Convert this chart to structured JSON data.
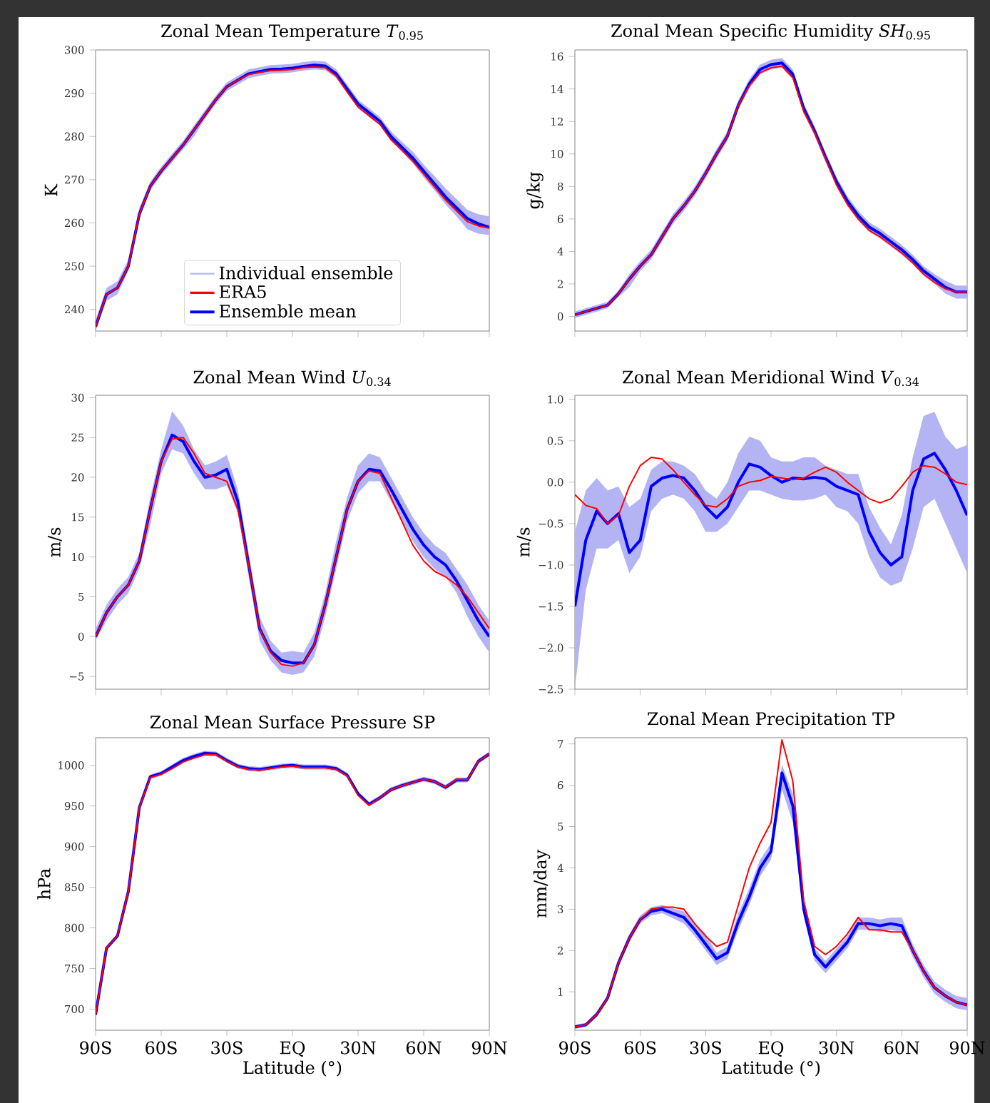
{
  "chart_data": [
    {
      "type": "line",
      "title": "Zonal Mean Temperature *T*$_{0.95}$",
      "ylabel": "K",
      "legend": "bottom",
      "tick_labels": "y",
      "x": [
        -90,
        -85,
        -80,
        -75,
        -70,
        -65,
        -60,
        -55,
        -50,
        -45,
        -40,
        -35,
        -30,
        -25,
        -20,
        -15,
        -10,
        -5,
        0,
        5,
        10,
        15,
        20,
        25,
        30,
        35,
        40,
        45,
        50,
        55,
        60,
        65,
        70,
        75,
        80,
        85,
        90
      ],
      "xlim": [
        -90,
        90
      ],
      "xticks": [
        {
          "value": -90,
          "label": null
        },
        {
          "value": -60,
          "label": null
        },
        {
          "value": -30,
          "label": null
        },
        {
          "value": 0,
          "label": null
        },
        {
          "value": 30,
          "label": null
        },
        {
          "value": 60,
          "label": null
        },
        {
          "value": 90,
          "label": null
        }
      ],
      "ylim": [
        235,
        300
      ],
      "yticks": [
        240,
        250,
        260,
        270,
        280,
        290,
        300
      ],
      "series": [
        {
          "name": "Individual ensemble",
          "color": "#b4b4f5",
          "values": [
            null,
            null,
            null,
            null,
            null,
            null,
            null,
            null,
            null,
            null,
            null,
            null,
            null,
            null,
            null,
            null,
            null,
            null,
            null,
            null,
            null,
            null,
            null,
            null,
            null,
            null,
            null,
            null,
            null,
            null,
            null,
            null,
            null,
            null,
            null,
            null,
            null
          ],
          "lower": [
            235,
            242,
            243.5,
            249,
            261,
            267.5,
            271,
            274,
            277,
            280,
            284,
            287.5,
            290.5,
            292,
            293.5,
            294,
            294.5,
            294.6,
            294.8,
            295.2,
            295.5,
            295.3,
            293.5,
            290,
            286.5,
            284.5,
            282.5,
            279,
            276.5,
            273.8,
            270.5,
            267.5,
            264.3,
            261.5,
            258.5,
            257.5,
            257.2
          ],
          "upper": [
            237.5,
            245,
            246.5,
            251.5,
            263.5,
            269.5,
            273,
            276,
            279,
            282.5,
            286,
            289.5,
            292.5,
            294,
            295.5,
            296,
            296.5,
            296.6,
            296.8,
            297.2,
            297.5,
            297.3,
            295.5,
            292,
            288.5,
            286.5,
            284.5,
            281.2,
            278.8,
            276.5,
            273.5,
            270.8,
            268,
            265.5,
            263,
            262,
            261.5
          ]
        },
        {
          "name": "ERA5",
          "color": "#ff0000",
          "values": [
            236,
            243.5,
            245,
            250,
            262,
            268.5,
            272,
            275,
            278,
            281.5,
            285,
            288.5,
            291.5,
            293,
            294.3,
            294.8,
            295.2,
            295.3,
            295.5,
            295.9,
            296.1,
            295.9,
            294,
            290.3,
            286.8,
            284.8,
            282.8,
            279.3,
            276.8,
            274.3,
            271.3,
            268.3,
            265.3,
            262.8,
            260.3,
            259.3,
            258.8
          ]
        },
        {
          "name": "Ensemble mean",
          "color": "#0000ff",
          "values": [
            236,
            243.5,
            245,
            250,
            262,
            268.5,
            272,
            275,
            278,
            281.5,
            285,
            288.5,
            291.5,
            293,
            294.5,
            295,
            295.5,
            295.6,
            295.8,
            296.2,
            296.5,
            296.3,
            294.5,
            291,
            287.5,
            285.5,
            283.5,
            280,
            277.5,
            275,
            272,
            269,
            266,
            263.5,
            261,
            259.8,
            259
          ]
        }
      ]
    },
    {
      "type": "line",
      "title": "Zonal Mean Specific Humidity *SH*$_{0.95}$",
      "ylabel": "g/kg",
      "tick_labels": "y",
      "x": [
        -90,
        -85,
        -80,
        -75,
        -70,
        -65,
        -60,
        -55,
        -50,
        -45,
        -40,
        -35,
        -30,
        -25,
        -20,
        -15,
        -10,
        -5,
        0,
        5,
        10,
        15,
        20,
        25,
        30,
        35,
        40,
        45,
        50,
        55,
        60,
        65,
        70,
        75,
        80,
        85,
        90
      ],
      "xlim": [
        -90,
        90
      ],
      "xticks": [
        {
          "value": -90,
          "label": null
        },
        {
          "value": -60,
          "label": null
        },
        {
          "value": -30,
          "label": null
        },
        {
          "value": 0,
          "label": null
        },
        {
          "value": 30,
          "label": null
        },
        {
          "value": 60,
          "label": null
        },
        {
          "value": 90,
          "label": null
        }
      ],
      "ylim": [
        -0.9,
        16.4
      ],
      "yticks": [
        0,
        2,
        4,
        6,
        8,
        10,
        12,
        14,
        16
      ],
      "series": [
        {
          "color": "#b4b4f5",
          "values": [
            null,
            null,
            null,
            null,
            null,
            null,
            null,
            null,
            null,
            null,
            null,
            null,
            null,
            null,
            null,
            null,
            null,
            null,
            null,
            null,
            null,
            null,
            null,
            null,
            null,
            null,
            null,
            null,
            null,
            null,
            null,
            null,
            null,
            null,
            null,
            null,
            null
          ],
          "lower": [
            -0.1,
            0.1,
            0.3,
            0.5,
            1.2,
            1.8,
            2.8,
            3.5,
            4.6,
            5.7,
            6.5,
            7.4,
            8.5,
            9.7,
            10.8,
            12.7,
            14.0,
            14.9,
            15.2,
            15.3,
            14.6,
            12.5,
            11.1,
            9.5,
            8.0,
            6.8,
            5.9,
            5.2,
            4.8,
            4.3,
            3.8,
            3.2,
            2.5,
            2.0,
            1.4,
            1.1,
            1.1
          ],
          "upper": [
            0.3,
            0.5,
            0.7,
            0.9,
            1.6,
            2.6,
            3.4,
            4.1,
            5.2,
            6.3,
            7.1,
            8.0,
            9.1,
            10.3,
            11.4,
            13.3,
            14.6,
            15.5,
            15.8,
            15.9,
            15.2,
            13.1,
            11.7,
            10.1,
            8.6,
            7.4,
            6.5,
            5.8,
            5.4,
            4.9,
            4.4,
            3.8,
            3.1,
            2.6,
            2.2,
            1.9,
            1.9
          ]
        },
        {
          "color": "#ff0000",
          "values": [
            0.1,
            0.3,
            0.5,
            0.7,
            1.4,
            2.3,
            3.1,
            3.8,
            4.9,
            6.0,
            6.8,
            7.7,
            8.8,
            10.0,
            11.1,
            13.0,
            14.2,
            15.0,
            15.3,
            15.4,
            14.7,
            12.6,
            11.3,
            9.7,
            8.1,
            6.9,
            6.0,
            5.3,
            4.9,
            4.4,
            3.9,
            3.3,
            2.6,
            2.1,
            1.7,
            1.5,
            1.5
          ]
        },
        {
          "color": "#0000ff",
          "values": [
            0.1,
            0.3,
            0.5,
            0.7,
            1.4,
            2.3,
            3.1,
            3.8,
            4.9,
            6.0,
            6.8,
            7.7,
            8.8,
            10.0,
            11.1,
            13.0,
            14.3,
            15.2,
            15.5,
            15.6,
            14.9,
            12.8,
            11.4,
            9.8,
            8.3,
            7.1,
            6.2,
            5.5,
            5.1,
            4.6,
            4.1,
            3.5,
            2.8,
            2.3,
            1.8,
            1.5,
            1.5
          ]
        }
      ]
    },
    {
      "type": "line",
      "title": "Zonal Mean Wind *U*$_{0.34}$",
      "ylabel": "m/s",
      "tick_labels": "y",
      "x": [
        -90,
        -85,
        -80,
        -75,
        -70,
        -65,
        -60,
        -55,
        -50,
        -45,
        -40,
        -35,
        -30,
        -25,
        -20,
        -15,
        -10,
        -5,
        0,
        5,
        10,
        15,
        20,
        25,
        30,
        35,
        40,
        45,
        50,
        55,
        60,
        65,
        70,
        75,
        80,
        85,
        90
      ],
      "xlim": [
        -90,
        90
      ],
      "xticks": [
        {
          "value": -90,
          "label": null
        },
        {
          "value": -60,
          "label": null
        },
        {
          "value": -30,
          "label": null
        },
        {
          "value": 0,
          "label": null
        },
        {
          "value": 30,
          "label": null
        },
        {
          "value": 60,
          "label": null
        },
        {
          "value": 90,
          "label": null
        }
      ],
      "ylim": [
        -6.6,
        30.3
      ],
      "yticks": [
        {
          "value": -5,
          "label": "−5"
        },
        0,
        5,
        10,
        15,
        20,
        25,
        30
      ],
      "series": [
        {
          "color": "#b4b4f5",
          "values": [
            null,
            null,
            null,
            null,
            null,
            null,
            null,
            null,
            null,
            null,
            null,
            null,
            null,
            null,
            null,
            null,
            null,
            null,
            null,
            null,
            null,
            null,
            null,
            null,
            null,
            null,
            null,
            null,
            null,
            null,
            null,
            null,
            null,
            null,
            null,
            null,
            null
          ],
          "lower": [
            -0.5,
            2,
            4,
            5.5,
            8.5,
            14,
            20.5,
            23.5,
            23,
            20.5,
            18.5,
            18.5,
            19,
            15.5,
            7.5,
            -0.5,
            -3,
            -4.5,
            -4.8,
            -4.5,
            -2.5,
            2.5,
            8.5,
            14.5,
            18,
            19.5,
            19.5,
            17,
            14.5,
            12,
            10,
            8.5,
            7.5,
            5.5,
            2.5,
            0,
            -2
          ],
          "upper": [
            1,
            4,
            6,
            7.5,
            10.5,
            17.5,
            23.5,
            28.3,
            26.5,
            23.5,
            21.5,
            22,
            22.8,
            18.5,
            10.5,
            2.5,
            -0.5,
            -2,
            -1.8,
            -2,
            0.5,
            5.5,
            12,
            17.5,
            21.5,
            23,
            22.5,
            20,
            17.5,
            15,
            13,
            11.5,
            10.5,
            8.5,
            6.5,
            4,
            2
          ]
        },
        {
          "color": "#ff0000",
          "values": [
            0,
            3,
            5,
            6.5,
            9.5,
            16,
            22,
            24.8,
            25,
            23,
            20.5,
            20,
            19.5,
            16,
            9,
            1,
            -2,
            -3.5,
            -3.7,
            -3.3,
            -1,
            4,
            10,
            16,
            19.5,
            20.8,
            20.5,
            17.5,
            14.5,
            11.5,
            9.5,
            8.2,
            7.5,
            6.5,
            5,
            3,
            1
          ]
        },
        {
          "color": "#0000ff",
          "values": [
            0,
            3,
            5,
            6.5,
            9.5,
            16,
            22,
            25.3,
            24.5,
            22,
            20,
            20.3,
            21,
            17,
            9,
            1,
            -1.8,
            -3,
            -3.3,
            -3.3,
            -1,
            4,
            10,
            16,
            19.5,
            21,
            20.8,
            18.5,
            16,
            13.5,
            11.5,
            10,
            9,
            7,
            4.5,
            2,
            0
          ]
        }
      ]
    },
    {
      "type": "line",
      "title": "Zonal Mean Meridional Wind *V*$_{0.34}$",
      "ylabel": "m/s",
      "tick_labels": "y",
      "x": [
        -90,
        -85,
        -80,
        -75,
        -70,
        -65,
        -60,
        -55,
        -50,
        -45,
        -40,
        -35,
        -30,
        -25,
        -20,
        -15,
        -10,
        -5,
        0,
        5,
        10,
        15,
        20,
        25,
        30,
        35,
        40,
        45,
        50,
        55,
        60,
        65,
        70,
        75,
        80,
        85,
        90
      ],
      "xlim": [
        -90,
        90
      ],
      "xticks": [
        {
          "value": -90,
          "label": null
        },
        {
          "value": -60,
          "label": null
        },
        {
          "value": -30,
          "label": null
        },
        {
          "value": 0,
          "label": null
        },
        {
          "value": 30,
          "label": null
        },
        {
          "value": 60,
          "label": null
        },
        {
          "value": 90,
          "label": null
        }
      ],
      "ylim": [
        -2.5,
        1.05
      ],
      "yticks": [
        {
          "value": -2.5,
          "label": "−2.5"
        },
        {
          "value": -2,
          "label": "−2.0"
        },
        {
          "value": -1.5,
          "label": "−1.5"
        },
        {
          "value": -1,
          "label": "−1.0"
        },
        {
          "value": -0.5,
          "label": "−0.5"
        },
        {
          "value": 0,
          "label": "0.0"
        },
        {
          "value": 0.5,
          "label": "0.5"
        },
        {
          "value": 1,
          "label": "1.0"
        }
      ],
      "series": [
        {
          "color": "#b4b4f5",
          "values": [
            null,
            null,
            null,
            null,
            null,
            null,
            null,
            null,
            null,
            null,
            null,
            null,
            null,
            null,
            null,
            null,
            null,
            null,
            null,
            null,
            null,
            null,
            null,
            null,
            null,
            null,
            null,
            null,
            null,
            null,
            null,
            null,
            null,
            null,
            null,
            null,
            null
          ],
          "lower": [
            -2.5,
            -1.3,
            -0.8,
            -0.8,
            -0.7,
            -1.1,
            -0.9,
            -0.35,
            -0.2,
            -0.15,
            -0.2,
            -0.35,
            -0.6,
            -0.6,
            -0.5,
            -0.3,
            -0.1,
            -0.1,
            -0.15,
            -0.2,
            -0.22,
            -0.22,
            -0.2,
            -0.15,
            -0.3,
            -0.35,
            -0.5,
            -0.9,
            -1.15,
            -1.25,
            -1.2,
            -0.8,
            -0.3,
            -0.2,
            -0.5,
            -0.8,
            -1.1
          ],
          "upper": [
            -0.6,
            -0.1,
            0.05,
            -0.1,
            -0.05,
            -0.3,
            -0.2,
            0.15,
            0.25,
            0.25,
            0.2,
            0.1,
            -0.1,
            -0.2,
            0.0,
            0.35,
            0.55,
            0.5,
            0.3,
            0.25,
            0.25,
            0.3,
            0.3,
            0.2,
            0.15,
            0.1,
            0.1,
            -0.3,
            -0.55,
            -0.75,
            -0.4,
            0.3,
            0.8,
            0.85,
            0.55,
            0.4,
            0.45
          ]
        },
        {
          "color": "#ff0000",
          "values": [
            -0.15,
            -0.28,
            -0.32,
            -0.5,
            -0.4,
            -0.05,
            0.2,
            0.3,
            0.28,
            0.15,
            0.0,
            -0.15,
            -0.28,
            -0.3,
            -0.2,
            -0.05,
            0.0,
            0.02,
            0.07,
            0.05,
            0.03,
            0.05,
            0.12,
            0.18,
            0.12,
            0.0,
            -0.1,
            -0.2,
            -0.25,
            -0.2,
            -0.05,
            0.12,
            0.2,
            0.18,
            0.1,
            0.0,
            -0.03
          ]
        },
        {
          "color": "#0000ff",
          "values": [
            -1.5,
            -0.7,
            -0.35,
            -0.5,
            -0.38,
            -0.85,
            -0.7,
            -0.05,
            0.05,
            0.08,
            0.05,
            -0.1,
            -0.3,
            -0.43,
            -0.3,
            0.0,
            0.22,
            0.18,
            0.08,
            0.0,
            0.05,
            0.04,
            0.06,
            0.04,
            -0.05,
            -0.1,
            -0.15,
            -0.6,
            -0.85,
            -1.0,
            -0.9,
            -0.1,
            0.28,
            0.35,
            0.15,
            -0.1,
            -0.4
          ]
        }
      ]
    },
    {
      "type": "line",
      "title": "Zonal Mean Surface Pressure SP",
      "ylabel": "hPa",
      "xlabel": "Latitude (°)",
      "x": [
        -90,
        -85,
        -80,
        -75,
        -70,
        -65,
        -60,
        -55,
        -50,
        -45,
        -40,
        -35,
        -30,
        -25,
        -20,
        -15,
        -10,
        -5,
        0,
        5,
        10,
        15,
        20,
        25,
        30,
        35,
        40,
        45,
        50,
        55,
        60,
        65,
        70,
        75,
        80,
        85,
        90
      ],
      "xlim": [
        -90,
        90
      ],
      "xticks": [
        {
          "value": -90,
          "label": "90S"
        },
        {
          "value": -60,
          "label": "60S"
        },
        {
          "value": -30,
          "label": "30S"
        },
        {
          "value": 0,
          "label": "EQ"
        },
        {
          "value": 30,
          "label": "30N"
        },
        {
          "value": 60,
          "label": "60N"
        },
        {
          "value": 90,
          "label": "90N"
        }
      ],
      "ylim": [
        674,
        1034
      ],
      "yticks": [
        700,
        750,
        800,
        850,
        900,
        950,
        1000
      ],
      "series": [
        {
          "color": "#b4b4f5",
          "values": [
            null,
            null,
            null,
            null,
            null,
            null,
            null,
            null,
            null,
            null,
            null,
            null,
            null,
            null,
            null,
            null,
            null,
            null,
            null,
            null,
            null,
            null,
            null,
            null,
            null,
            null,
            null,
            null,
            null,
            null,
            null,
            null,
            null,
            null,
            null,
            null,
            null
          ],
          "lower": [
            690,
            772,
            787,
            842,
            945,
            983,
            987,
            995,
            1003,
            1008,
            1012,
            1011,
            1003,
            996,
            993,
            992,
            994,
            996,
            997,
            995,
            995,
            995,
            993,
            985,
            962,
            949,
            957,
            967,
            972,
            976,
            980,
            977,
            970,
            979,
            979,
            1002,
            1011
          ],
          "upper": [
            696,
            778,
            793,
            848,
            951,
            989,
            993,
            1001,
            1009,
            1014,
            1018,
            1017,
            1009,
            1002,
            999,
            998,
            1000,
            1002,
            1003,
            1001,
            1001,
            1001,
            999,
            991,
            968,
            955,
            963,
            973,
            978,
            982,
            986,
            983,
            976,
            985,
            985,
            1008,
            1017
          ]
        },
        {
          "color": "#ff0000",
          "values": [
            693,
            775,
            790,
            845,
            948,
            985,
            989,
            996,
            1004,
            1009,
            1013,
            1013,
            1005,
            998,
            995,
            994,
            996,
            998,
            999,
            997,
            997,
            997,
            995,
            987,
            963,
            951,
            960,
            970,
            975,
            979,
            983,
            980,
            973,
            983,
            982,
            1005,
            1014
          ]
        },
        {
          "color": "#0000ff",
          "values": [
            693,
            775,
            790,
            845,
            948,
            986,
            990,
            998,
            1006,
            1011,
            1015,
            1014,
            1006,
            999,
            996,
            995,
            997,
            999,
            1000,
            998,
            998,
            998,
            996,
            988,
            965,
            952,
            960,
            970,
            975,
            979,
            983,
            980,
            973,
            982,
            982,
            1005,
            1014
          ]
        }
      ]
    },
    {
      "type": "line",
      "title": "Zonal Mean Precipitation TP",
      "ylabel": "mm/day",
      "xlabel": "Latitude (°)",
      "x": [
        -90,
        -85,
        -80,
        -75,
        -70,
        -65,
        -60,
        -55,
        -50,
        -45,
        -40,
        -35,
        -30,
        -25,
        -20,
        -15,
        -10,
        -5,
        0,
        5,
        10,
        15,
        20,
        25,
        30,
        35,
        40,
        45,
        50,
        55,
        60,
        65,
        70,
        75,
        80,
        85,
        90
      ],
      "xlim": [
        -90,
        90
      ],
      "xticks": [
        {
          "value": -90,
          "label": "90S"
        },
        {
          "value": -60,
          "label": "60S"
        },
        {
          "value": -30,
          "label": "30S"
        },
        {
          "value": 0,
          "label": "EQ"
        },
        {
          "value": 30,
          "label": "30N"
        },
        {
          "value": 60,
          "label": "60N"
        },
        {
          "value": 90,
          "label": "90N"
        }
      ],
      "ylim": [
        0.07,
        7.15
      ],
      "yticks": [
        1,
        2,
        3,
        4,
        5,
        6,
        7
      ],
      "series": [
        {
          "color": "#b4b4f5",
          "values": [
            null,
            null,
            null,
            null,
            null,
            null,
            null,
            null,
            null,
            null,
            null,
            null,
            null,
            null,
            null,
            null,
            null,
            null,
            null,
            null,
            null,
            null,
            null,
            null,
            null,
            null,
            null,
            null,
            null,
            null,
            null,
            null,
            null,
            null,
            null,
            null,
            null
          ],
          "lower": [
            0.1,
            0.15,
            0.38,
            0.78,
            1.6,
            2.2,
            2.65,
            2.85,
            2.9,
            2.78,
            2.65,
            2.35,
            2.0,
            1.65,
            1.8,
            2.5,
            3.1,
            3.8,
            4.2,
            5.9,
            5.1,
            2.8,
            1.75,
            1.45,
            1.75,
            2.05,
            2.5,
            2.5,
            2.45,
            2.5,
            2.45,
            1.85,
            1.35,
            0.95,
            0.75,
            0.6,
            0.55
          ],
          "upper": [
            0.2,
            0.25,
            0.52,
            0.92,
            1.8,
            2.4,
            2.85,
            3.05,
            3.1,
            3.02,
            2.95,
            2.65,
            2.4,
            1.95,
            2.1,
            2.9,
            3.5,
            4.2,
            4.6,
            6.5,
            5.8,
            3.2,
            2.05,
            1.75,
            2.05,
            2.35,
            2.8,
            2.8,
            2.75,
            2.8,
            2.8,
            2.15,
            1.65,
            1.25,
            1.05,
            0.9,
            0.85
          ]
        },
        {
          "color": "#ff0000",
          "values": [
            0.15,
            0.2,
            0.45,
            0.85,
            1.7,
            2.3,
            2.75,
            3.0,
            3.05,
            3.05,
            3.0,
            2.65,
            2.35,
            2.1,
            2.2,
            3.1,
            4.0,
            4.6,
            5.1,
            7.1,
            6.1,
            3.2,
            2.1,
            1.9,
            2.1,
            2.4,
            2.8,
            2.5,
            2.5,
            2.45,
            2.45,
            2.0,
            1.5,
            1.1,
            0.9,
            0.75,
            0.68
          ]
        },
        {
          "color": "#0000ff",
          "values": [
            0.15,
            0.2,
            0.45,
            0.85,
            1.7,
            2.3,
            2.75,
            2.95,
            3.0,
            2.9,
            2.8,
            2.5,
            2.15,
            1.8,
            1.95,
            2.7,
            3.3,
            4.0,
            4.4,
            6.3,
            5.5,
            3.0,
            1.9,
            1.6,
            1.9,
            2.2,
            2.65,
            2.65,
            2.6,
            2.65,
            2.6,
            2.0,
            1.5,
            1.1,
            0.9,
            0.75,
            0.68
          ]
        }
      ]
    }
  ]
}
